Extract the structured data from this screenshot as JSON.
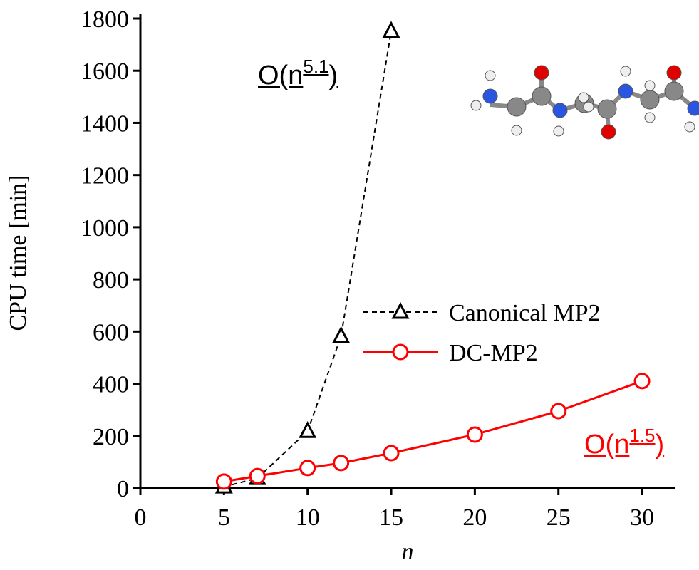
{
  "chart_data": {
    "type": "line",
    "x_label": "n",
    "y_label": "CPU time [min]",
    "xlim": [
      0,
      32
    ],
    "xticks": [
      0,
      5,
      10,
      15,
      20,
      25,
      30
    ],
    "ylim": [
      0,
      1800
    ],
    "yticks": [
      0,
      200,
      400,
      600,
      800,
      1000,
      1200,
      1400,
      1600,
      1800
    ],
    "legend": "center-right",
    "series": [
      {
        "name": "Canonical MP2",
        "color": "#000000",
        "marker": "triangle",
        "dashed": true,
        "x": [
          5,
          7,
          10,
          12,
          15
        ],
        "values": [
          5,
          38,
          218,
          582,
          1752
        ]
      },
      {
        "name": "DC-MP2",
        "color": "#ff0000",
        "marker": "circle",
        "dashed": false,
        "x": [
          5,
          7,
          10,
          12,
          15,
          20,
          25,
          30
        ],
        "values": [
          25,
          46,
          77,
          96,
          134,
          205,
          295,
          410
        ]
      }
    ],
    "annotations": [
      {
        "base": "O(n",
        "exponent": "5.1",
        "close": ")",
        "color": "#000000"
      },
      {
        "base": "O(n",
        "exponent": "1.5",
        "close": ")",
        "color": "#ff0000"
      }
    ]
  }
}
